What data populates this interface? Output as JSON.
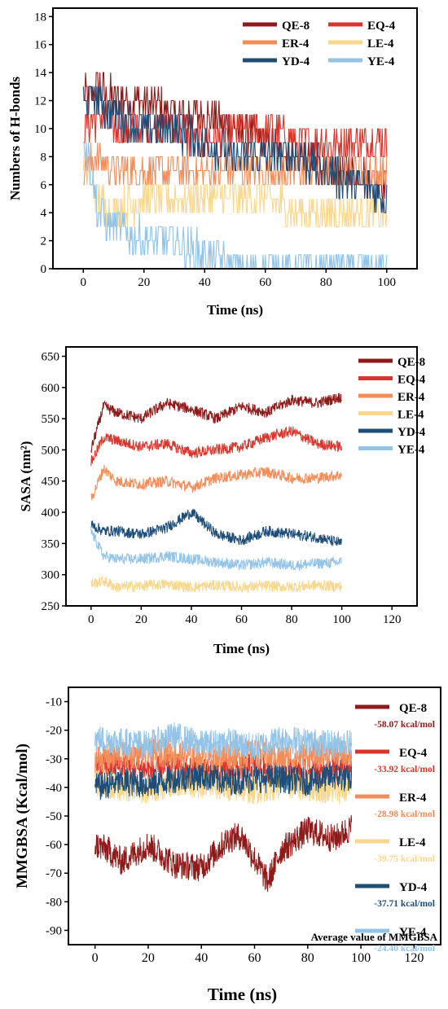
{
  "chart_data": [
    {
      "type": "line",
      "title": "",
      "xlabel": "Time (ns)",
      "ylabel": "Numbers of H-bonds",
      "xlim": [
        -10,
        110
      ],
      "ylim": [
        0,
        18.6
      ],
      "xticks": [
        0,
        20,
        40,
        60,
        80,
        100
      ],
      "yticks": [
        0,
        2,
        4,
        6,
        8,
        10,
        12,
        14,
        16,
        18
      ],
      "legend_position": "top-right",
      "series": [
        {
          "name": "QE-8",
          "color": "#8e1a1a",
          "x": [
            0,
            5,
            10,
            20,
            30,
            40,
            50,
            60,
            70,
            80,
            90,
            100
          ],
          "values": [
            12,
            13,
            12,
            12,
            11,
            11,
            10,
            9,
            8,
            7,
            7,
            6
          ]
        },
        {
          "name": "EQ-4",
          "color": "#d8352c",
          "x": [
            0,
            5,
            10,
            20,
            30,
            40,
            50,
            60,
            70,
            80,
            90,
            100
          ],
          "values": [
            10,
            11,
            10,
            10,
            10,
            9,
            10,
            10,
            9,
            9,
            9,
            9
          ]
        },
        {
          "name": "ER-4",
          "color": "#f28c58",
          "x": [
            0,
            5,
            10,
            20,
            30,
            40,
            50,
            60,
            70,
            80,
            90,
            100
          ],
          "values": [
            7,
            8,
            7,
            7,
            7,
            7,
            7,
            7,
            7,
            7,
            7,
            7
          ]
        },
        {
          "name": "LE-4",
          "color": "#f9d78c",
          "x": [
            0,
            5,
            10,
            20,
            30,
            40,
            50,
            60,
            70,
            80,
            90,
            100
          ],
          "values": [
            8,
            5,
            4,
            5,
            5,
            5,
            5,
            5,
            4,
            4,
            4,
            4
          ]
        },
        {
          "name": "YD-4",
          "color": "#1e4d78",
          "x": [
            0,
            5,
            10,
            20,
            30,
            40,
            50,
            60,
            70,
            80,
            90,
            100
          ],
          "values": [
            12,
            12,
            11,
            10,
            10,
            9,
            8,
            8,
            8,
            7,
            6,
            5
          ]
        },
        {
          "name": "YE-4",
          "color": "#93c3e6",
          "x": [
            0,
            5,
            10,
            20,
            30,
            40,
            50,
            60,
            70,
            80,
            90,
            100
          ],
          "values": [
            10,
            4,
            3,
            2,
            2,
            1,
            0,
            0,
            0,
            0,
            0,
            0
          ]
        }
      ]
    },
    {
      "type": "line",
      "title": "",
      "xlabel": "Time (ns)",
      "ylabel": "SASA (nm²)",
      "xlim": [
        -10,
        130
      ],
      "ylim": [
        250,
        665
      ],
      "xticks": [
        0,
        20,
        40,
        60,
        80,
        100,
        120
      ],
      "yticks": [
        250,
        300,
        350,
        400,
        450,
        500,
        550,
        600,
        650
      ],
      "legend_position": "top-right",
      "series": [
        {
          "name": "QE-8",
          "color": "#8e1a1a",
          "x": [
            0,
            5,
            10,
            20,
            30,
            40,
            50,
            60,
            70,
            80,
            90,
            100
          ],
          "values": [
            500,
            570,
            560,
            550,
            575,
            565,
            550,
            570,
            560,
            580,
            575,
            585
          ]
        },
        {
          "name": "EQ-4",
          "color": "#d8352c",
          "x": [
            0,
            5,
            10,
            20,
            30,
            40,
            50,
            60,
            70,
            80,
            90,
            100
          ],
          "values": [
            480,
            520,
            515,
            505,
            510,
            495,
            500,
            505,
            520,
            530,
            510,
            505
          ]
        },
        {
          "name": "ER-4",
          "color": "#f28c58",
          "x": [
            0,
            5,
            10,
            20,
            30,
            40,
            50,
            60,
            70,
            80,
            90,
            100
          ],
          "values": [
            420,
            470,
            450,
            445,
            450,
            440,
            455,
            460,
            465,
            455,
            455,
            460
          ]
        },
        {
          "name": "LE-4",
          "color": "#f9d78c",
          "x": [
            0,
            5,
            10,
            20,
            30,
            40,
            50,
            60,
            70,
            80,
            90,
            100
          ],
          "values": [
            285,
            290,
            280,
            282,
            285,
            280,
            283,
            280,
            282,
            280,
            283,
            281
          ]
        },
        {
          "name": "YD-4",
          "color": "#1e4d78",
          "x": [
            0,
            5,
            10,
            20,
            30,
            40,
            50,
            60,
            70,
            80,
            90,
            100
          ],
          "values": [
            380,
            370,
            370,
            365,
            375,
            400,
            365,
            355,
            370,
            365,
            360,
            350
          ]
        },
        {
          "name": "YE-4",
          "color": "#93c3e6",
          "x": [
            0,
            5,
            10,
            20,
            30,
            40,
            50,
            60,
            70,
            80,
            90,
            100
          ],
          "values": [
            370,
            330,
            325,
            325,
            330,
            325,
            320,
            315,
            320,
            315,
            318,
            320
          ]
        }
      ]
    },
    {
      "type": "line",
      "title": "",
      "xlabel": "Time (ns)",
      "ylabel": "MMGBSA (Kcal/mol)",
      "xlim": [
        -10,
        130
      ],
      "ylim": [
        -95,
        -5
      ],
      "xticks": [
        0,
        20,
        40,
        60,
        80,
        100,
        120
      ],
      "yticks": [
        -90,
        -80,
        -70,
        -60,
        -50,
        -40,
        -30,
        -20,
        -10
      ],
      "legend_position": "right",
      "annotation": "Average value of MMGBSA",
      "series": [
        {
          "name": "QE-8",
          "avg": "-58.07 kcal/mol",
          "color": "#8e1a1a",
          "x": [
            0,
            5,
            10,
            20,
            30,
            40,
            50,
            55,
            60,
            65,
            70,
            80,
            90,
            100
          ],
          "values": [
            -60,
            -62,
            -66,
            -60,
            -67,
            -68,
            -58,
            -57,
            -65,
            -73,
            -62,
            -55,
            -58,
            -52
          ]
        },
        {
          "name": "EQ-4",
          "avg": "-33.92 kcal/mol",
          "color": "#d8352c",
          "x": [
            0,
            10,
            20,
            30,
            40,
            50,
            60,
            70,
            80,
            90,
            100
          ],
          "values": [
            -33,
            -32,
            -34,
            -33,
            -35,
            -34,
            -33,
            -34,
            -35,
            -34,
            -33
          ]
        },
        {
          "name": "ER-4",
          "avg": "-28.98 kcal/mol",
          "color": "#f28c58",
          "x": [
            0,
            10,
            20,
            30,
            40,
            50,
            60,
            70,
            80,
            90,
            100
          ],
          "values": [
            -30,
            -29,
            -28,
            -28,
            -30,
            -29,
            -28,
            -30,
            -29,
            -28,
            -29
          ]
        },
        {
          "name": "LE-4",
          "avg": "-39.75 kcal/mol",
          "color": "#f9d78c",
          "x": [
            0,
            10,
            20,
            30,
            40,
            50,
            60,
            70,
            80,
            90,
            100
          ],
          "values": [
            -38,
            -40,
            -41,
            -38,
            -39,
            -40,
            -41,
            -39,
            -40,
            -41,
            -40
          ]
        },
        {
          "name": "YD-4",
          "avg": "-37.71 kcal/mol",
          "color": "#1e4d78",
          "x": [
            0,
            10,
            20,
            30,
            40,
            50,
            60,
            70,
            80,
            90,
            100
          ],
          "values": [
            -40,
            -38,
            -39,
            -37,
            -36,
            -38,
            -37,
            -37,
            -38,
            -36,
            -38
          ]
        },
        {
          "name": "YE-4",
          "avg": "-24.40 kcal/mol",
          "color": "#93c3e6",
          "x": [
            0,
            10,
            20,
            30,
            40,
            50,
            60,
            70,
            80,
            90,
            100
          ],
          "values": [
            -23,
            -24,
            -25,
            -22,
            -25,
            -24,
            -26,
            -23,
            -24,
            -25,
            -24
          ]
        }
      ]
    }
  ]
}
